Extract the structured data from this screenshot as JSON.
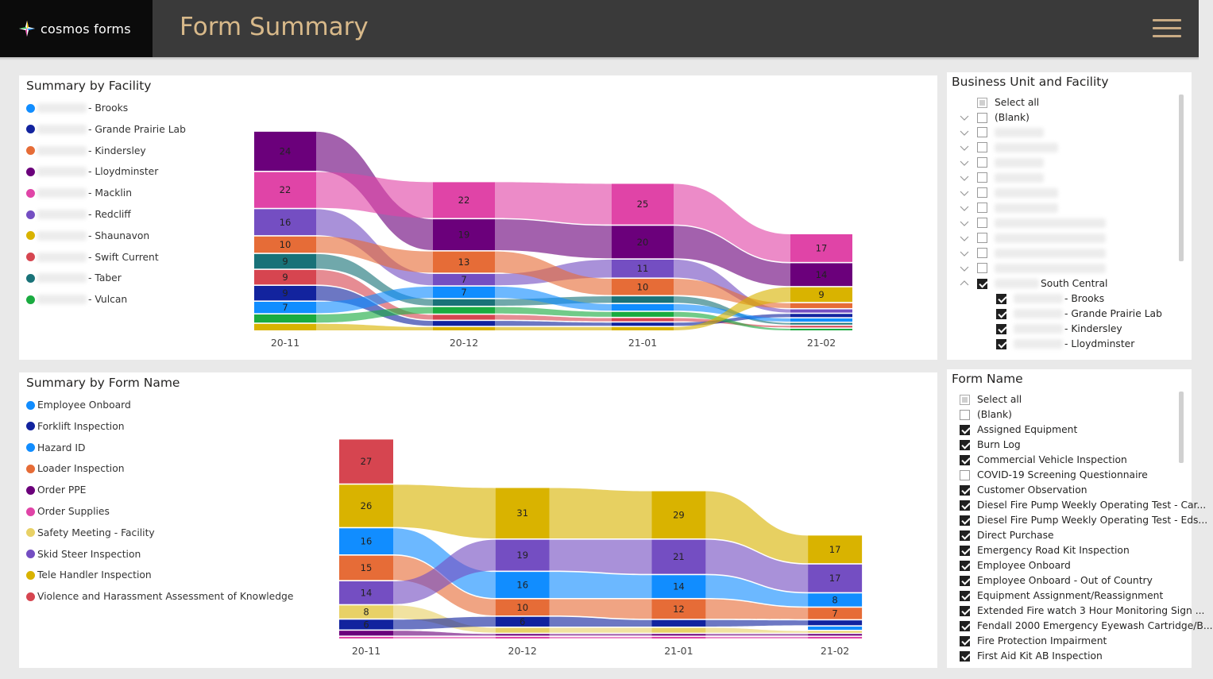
{
  "header": {
    "logo_text": "cosmos forms",
    "title": "Form Summary",
    "colors": {
      "bar": "#3a3a3a",
      "logo_bg": "#0b0b0b",
      "title": "#d8b98a"
    }
  },
  "facility_panel": {
    "title": "Summary by Facility",
    "legend": [
      {
        "label": "- Brooks",
        "color": "#118dff"
      },
      {
        "label": "- Grande Prairie Lab",
        "color": "#12239e"
      },
      {
        "label": "- Kindersley",
        "color": "#e66c37"
      },
      {
        "label": "- Lloydminster",
        "color": "#6b007b"
      },
      {
        "label": "- Macklin",
        "color": "#e044a7"
      },
      {
        "label": "- Redcliff",
        "color": "#744ec2"
      },
      {
        "label": "- Shaunavon",
        "color": "#d9b300"
      },
      {
        "label": "- Swift Current",
        "color": "#d64550"
      },
      {
        "label": "- Taber",
        "color": "#197278"
      },
      {
        "label": "- Vulcan",
        "color": "#1aab40"
      }
    ]
  },
  "form_panel": {
    "title": "Summary by Form Name",
    "legend": [
      {
        "label": "Employee Onboard",
        "color": "#118dff"
      },
      {
        "label": "Forklift Inspection",
        "color": "#12239e"
      },
      {
        "label": "Hazard ID",
        "color": "#118dff"
      },
      {
        "label": "Loader Inspection",
        "color": "#e66c37"
      },
      {
        "label": "Order PPE",
        "color": "#6b007b"
      },
      {
        "label": "Order Supplies",
        "color": "#e044a7"
      },
      {
        "label": "Safety Meeting - Facility",
        "color": "#e8d166"
      },
      {
        "label": "Skid Steer Inspection",
        "color": "#744ec2"
      },
      {
        "label": "Tele Handler Inspection",
        "color": "#d9b300"
      },
      {
        "label": "Violence and Harassment Assessment of Knowledge",
        "color": "#d64550"
      }
    ]
  },
  "chart_data": [
    {
      "type": "ribbon",
      "title": "Summary by Facility",
      "categories": [
        "20-11",
        "20-12",
        "21-01",
        "21-02"
      ],
      "series": [
        {
          "name": "Lloydminster",
          "color": "#6b007b",
          "values": [
            24,
            19,
            20,
            14
          ]
        },
        {
          "name": "Macklin",
          "color": "#e044a7",
          "values": [
            22,
            22,
            25,
            17
          ]
        },
        {
          "name": "Redcliff",
          "color": "#744ec2",
          "values": [
            16,
            7,
            11,
            2
          ]
        },
        {
          "name": "Kindersley",
          "color": "#e66c37",
          "values": [
            10,
            13,
            10,
            3
          ]
        },
        {
          "name": "Taber",
          "color": "#197278",
          "values": [
            9,
            4,
            4,
            1
          ]
        },
        {
          "name": "Swift Current",
          "color": "#d64550",
          "values": [
            9,
            3,
            2,
            1
          ]
        },
        {
          "name": "Grande Prairie Lab",
          "color": "#12239e",
          "values": [
            9,
            3,
            2,
            2
          ]
        },
        {
          "name": "Brooks",
          "color": "#118dff",
          "values": [
            7,
            7,
            4,
            2
          ]
        },
        {
          "name": "Vulcan",
          "color": "#1aab40",
          "values": [
            5,
            4,
            3,
            1
          ]
        },
        {
          "name": "Shaunavon",
          "color": "#d9b300",
          "values": [
            4,
            2,
            2,
            9
          ]
        }
      ]
    },
    {
      "type": "ribbon",
      "title": "Summary by Form Name",
      "categories": [
        "20-11",
        "20-12",
        "21-01",
        "21-02"
      ],
      "series": [
        {
          "name": "Violence and Harassment Assessment of Knowledge",
          "color": "#d64550",
          "values": [
            27,
            0,
            0,
            0
          ]
        },
        {
          "name": "Tele Handler Inspection",
          "color": "#d9b300",
          "values": [
            26,
            31,
            29,
            17
          ]
        },
        {
          "name": "Hazard ID",
          "color": "#118dff",
          "values": [
            16,
            16,
            14,
            8
          ]
        },
        {
          "name": "Loader Inspection",
          "color": "#e66c37",
          "values": [
            15,
            10,
            12,
            7
          ]
        },
        {
          "name": "Skid Steer Inspection",
          "color": "#744ec2",
          "values": [
            14,
            19,
            21,
            17
          ]
        },
        {
          "name": "Safety Meeting - Facility",
          "color": "#e8d166",
          "values": [
            8,
            3,
            3,
            1
          ]
        },
        {
          "name": "Forklift Inspection",
          "color": "#12239e",
          "values": [
            6,
            6,
            4,
            3
          ]
        },
        {
          "name": "Order PPE",
          "color": "#6b007b",
          "values": [
            3,
            1,
            1,
            1
          ]
        },
        {
          "name": "Order Supplies",
          "color": "#e044a7",
          "values": [
            1,
            1,
            1,
            1
          ]
        },
        {
          "name": "Employee Onboard",
          "color": "#118dff",
          "values": [
            0,
            0,
            0,
            2
          ]
        }
      ]
    }
  ],
  "bu_slicer": {
    "title": "Business Unit and Facility",
    "rows": [
      {
        "label": "Select all",
        "state": "part",
        "level": 1,
        "chevron": "none"
      },
      {
        "label": "(Blank)",
        "state": "off",
        "level": 1,
        "chevron": "down"
      },
      {
        "label": "",
        "state": "off",
        "level": 1,
        "chevron": "down",
        "blur": "short"
      },
      {
        "label": "",
        "state": "off",
        "level": 1,
        "chevron": "down",
        "blur": "mid"
      },
      {
        "label": "",
        "state": "off",
        "level": 1,
        "chevron": "down",
        "blur": "short"
      },
      {
        "label": "",
        "state": "off",
        "level": 1,
        "chevron": "down",
        "blur": "short"
      },
      {
        "label": "",
        "state": "off",
        "level": 1,
        "chevron": "down",
        "blur": "mid"
      },
      {
        "label": "",
        "state": "off",
        "level": 1,
        "chevron": "down",
        "blur": "mid"
      },
      {
        "label": "",
        "state": "off",
        "level": 1,
        "chevron": "down",
        "blur": "long"
      },
      {
        "label": "",
        "state": "off",
        "level": 1,
        "chevron": "down",
        "blur": "long"
      },
      {
        "label": "",
        "state": "off",
        "level": 1,
        "chevron": "down",
        "blur": "long"
      },
      {
        "label": "",
        "state": "off",
        "level": 1,
        "chevron": "down",
        "blur": "long"
      },
      {
        "label": "South Central",
        "state": "on",
        "level": 1,
        "chevron": "up",
        "blur": "prefix"
      },
      {
        "label": "- Brooks",
        "state": "on",
        "level": 2,
        "chevron": "none",
        "blur": "prefix2"
      },
      {
        "label": "- Grande Prairie Lab",
        "state": "on",
        "level": 2,
        "chevron": "none",
        "blur": "prefix2"
      },
      {
        "label": "- Kindersley",
        "state": "on",
        "level": 2,
        "chevron": "none",
        "blur": "prefix2"
      },
      {
        "label": "- Lloydminster",
        "state": "on",
        "level": 2,
        "chevron": "none",
        "blur": "prefix2"
      }
    ]
  },
  "form_slicer": {
    "title": "Form Name",
    "rows": [
      {
        "label": "Select all",
        "state": "part"
      },
      {
        "label": "(Blank)",
        "state": "off"
      },
      {
        "label": "Assigned Equipment",
        "state": "on"
      },
      {
        "label": "Burn Log",
        "state": "on"
      },
      {
        "label": "Commercial Vehicle Inspection",
        "state": "on"
      },
      {
        "label": "COVID-19 Screening Questionnaire",
        "state": "off"
      },
      {
        "label": "Customer Observation",
        "state": "on"
      },
      {
        "label": "Diesel Fire Pump Weekly Operating Test - Car...",
        "state": "on"
      },
      {
        "label": "Diesel Fire Pump Weekly Operating Test - Eds...",
        "state": "on"
      },
      {
        "label": "Direct Purchase",
        "state": "on"
      },
      {
        "label": "Emergency Road Kit Inspection",
        "state": "on"
      },
      {
        "label": "Employee Onboard",
        "state": "on"
      },
      {
        "label": "Employee Onboard - Out of Country",
        "state": "on"
      },
      {
        "label": "Equipment Assignment/Reassignment",
        "state": "on"
      },
      {
        "label": "Extended Fire watch 3 Hour Monitoring Sign ...",
        "state": "on"
      },
      {
        "label": "Fendall 2000 Emergency Eyewash Cartridge/B...",
        "state": "on"
      },
      {
        "label": "Fire Protection Impairment",
        "state": "on"
      },
      {
        "label": "First Aid Kit AB Inspection",
        "state": "on"
      }
    ]
  }
}
